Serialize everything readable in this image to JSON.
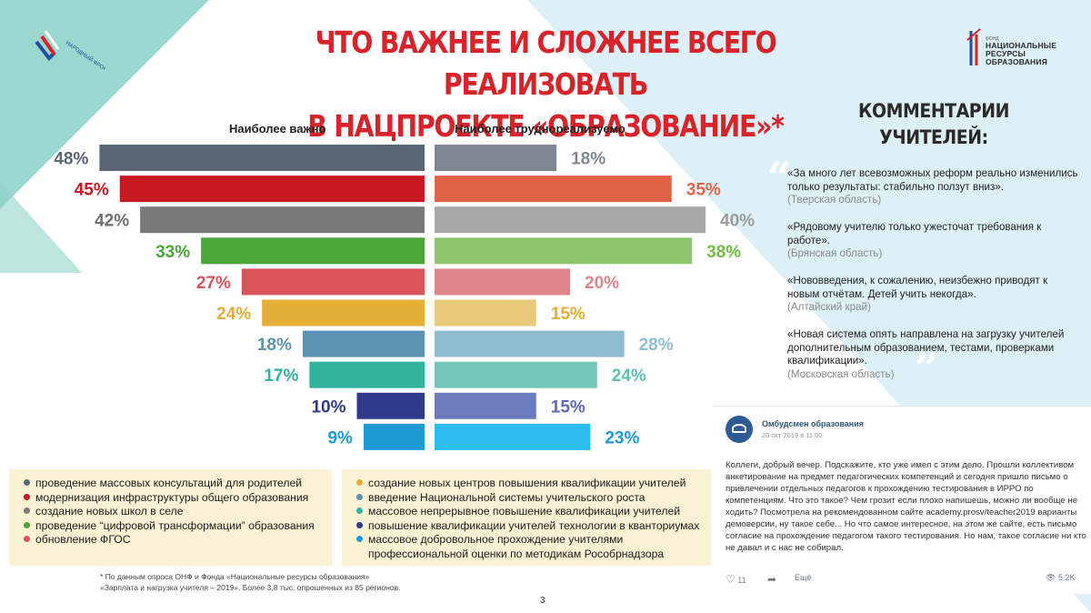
{
  "title": {
    "line1": "ЧТО ВАЖНЕЕ И СЛОЖНЕЕ ВСЕГО РЕАЛИЗОВАТЬ",
    "line2": "В НАЦПРОЕКТЕ «ОБРАЗОВАНИЕ»*"
  },
  "logos": {
    "left_text": "НАРОДНЫЙ ФРОНТ",
    "right_small": "ФОНД",
    "right_line1": "НАЦИОНАЛЬНЫЕ",
    "right_line2": "РЕСУРСЫ",
    "right_line3": "ОБРАЗОВАНИЯ"
  },
  "chart_data": {
    "type": "bar",
    "subtype": "mirrored-horizontal",
    "left_series": {
      "name": "Наиболее важно",
      "values": [
        48,
        45,
        42,
        33,
        27,
        24,
        18,
        17,
        10,
        9
      ],
      "labels": [
        "48%",
        "45%",
        "42%",
        "33%",
        "27%",
        "24%",
        "18%",
        "17%",
        "10%",
        "9%"
      ],
      "colors": [
        "#596678",
        "#c91a24",
        "#7a7a7a",
        "#4aa637",
        "#d9555b",
        "#e3ae36",
        "#5d92b4",
        "#2fb29e",
        "#2e3a8c",
        "#1e9ad6"
      ],
      "label_colors": [
        "#5a6677",
        "#c91a24",
        "#6f6f6f",
        "#4aa637",
        "#d9555b",
        "#e3ae36",
        "#5d92b4",
        "#2fb29e",
        "#2e3a8c",
        "#1e9ad6"
      ]
    },
    "right_series": {
      "name": "Наиболее труднореализуемо",
      "values": [
        18,
        35,
        40,
        38,
        20,
        15,
        28,
        24,
        15,
        23
      ],
      "labels": [
        "18%",
        "35%",
        "40%",
        "38%",
        "20%",
        "15%",
        "28%",
        "24%",
        "15%",
        "23%"
      ],
      "colors": [
        "#7d8892",
        "#e06346",
        "#a8a8a8",
        "#8dc46d",
        "#df8489",
        "#eac97a",
        "#8fbcd1",
        "#72c7b8",
        "#6c7bbd",
        "#2bbdee"
      ],
      "label_colors": [
        "#7d8892",
        "#e06346",
        "#9c9c9c",
        "#6fbd4a",
        "#df8489",
        "#e3ae36",
        "#8fbcd1",
        "#5cc0ae",
        "#5d6bb8",
        "#1e9ad6"
      ]
    },
    "xlim": [
      0,
      50
    ],
    "legend": [
      {
        "label": "проведение массовых консультаций для родителей",
        "color": "#596678"
      },
      {
        "label": "модернизация инфраструктуры общего образования",
        "color": "#c91a24"
      },
      {
        "label": "создание новых школ в селе",
        "color": "#7a7a7a"
      },
      {
        "label": "проведение “цифровой трансформации” образования",
        "color": "#4aa637"
      },
      {
        "label": "обновление ФГОС",
        "color": "#d9555b"
      },
      {
        "label": "создание новых центров повышения квалификации учителей",
        "color": "#e3ae36"
      },
      {
        "label": "введение Национальной системы учительского роста",
        "color": "#5d92b4"
      },
      {
        "label": "массовое непрерывное повышение квалификации учителей",
        "color": "#2fb29e"
      },
      {
        "label": "повышение квалификации учителей технологии в кванториумах",
        "color": "#2e3a8c"
      },
      {
        "label": "массовое добровольное прохождение учителями профессиональной оценки по методикам Рособрнадзора",
        "color": "#1e9ad6"
      }
    ]
  },
  "comments": {
    "title_line1": "КОММЕНТАРИИ",
    "title_line2": "УЧИТЕЛЕЙ:",
    "items": [
      {
        "text": "«За много лет всевозможных реформ реально изменились только результаты: стабильно ползут вниз».",
        "region": "(Тверская область)"
      },
      {
        "text": "«Рядовому учителю только ужесточат требования к работе».",
        "region": "(Брянская область)"
      },
      {
        "text": "«Нововведения, к сожалению, неизбежно приводят к новым отчётам. Детей учить некогда».",
        "region": "(Алтайский край)"
      },
      {
        "text": "«Новая система опять направлена на загрузку учителей дополнительным образованием, тестами, проверками квалификации».",
        "region": "(Московская область)"
      }
    ]
  },
  "vk_post": {
    "author": "Омбудсмен образования",
    "date": "20 окт 2019 в 11:00",
    "text": "Коллеги, добрый вечер. Подскажите, кто уже имел с этим дело. Прошли коллективом анкетирование на предмет педагогических компетенций и сегодня пришло письмо о привлечении отдельных педагогов к прохождению тестирования в ИРРО по компетенциям. Что это такое? Чем грозит если плохо напишешь, можно ли вообще не ходить? Посмотрела на рекомендованном сайте academy.prosv/teacher2019 варианты демоверсии, ну такое себе... Но что самое интересное, на этом же сайте, есть письмо согласие на прохождение педагогом такого тестирования. Но нам, такое согласие ни кто не давал и с нас не собирал.",
    "likes": "11",
    "more": "Ещё",
    "views": "5.2K"
  },
  "footnote": {
    "line1": "* По данным опроса ОНФ и Фонда «Национальные ресурсы образования»",
    "line2": "«Зарплата и нагрузка учителя – 2019». Более 3,8 тыс. опрошенных из 85 регионов."
  },
  "page_number": "3"
}
